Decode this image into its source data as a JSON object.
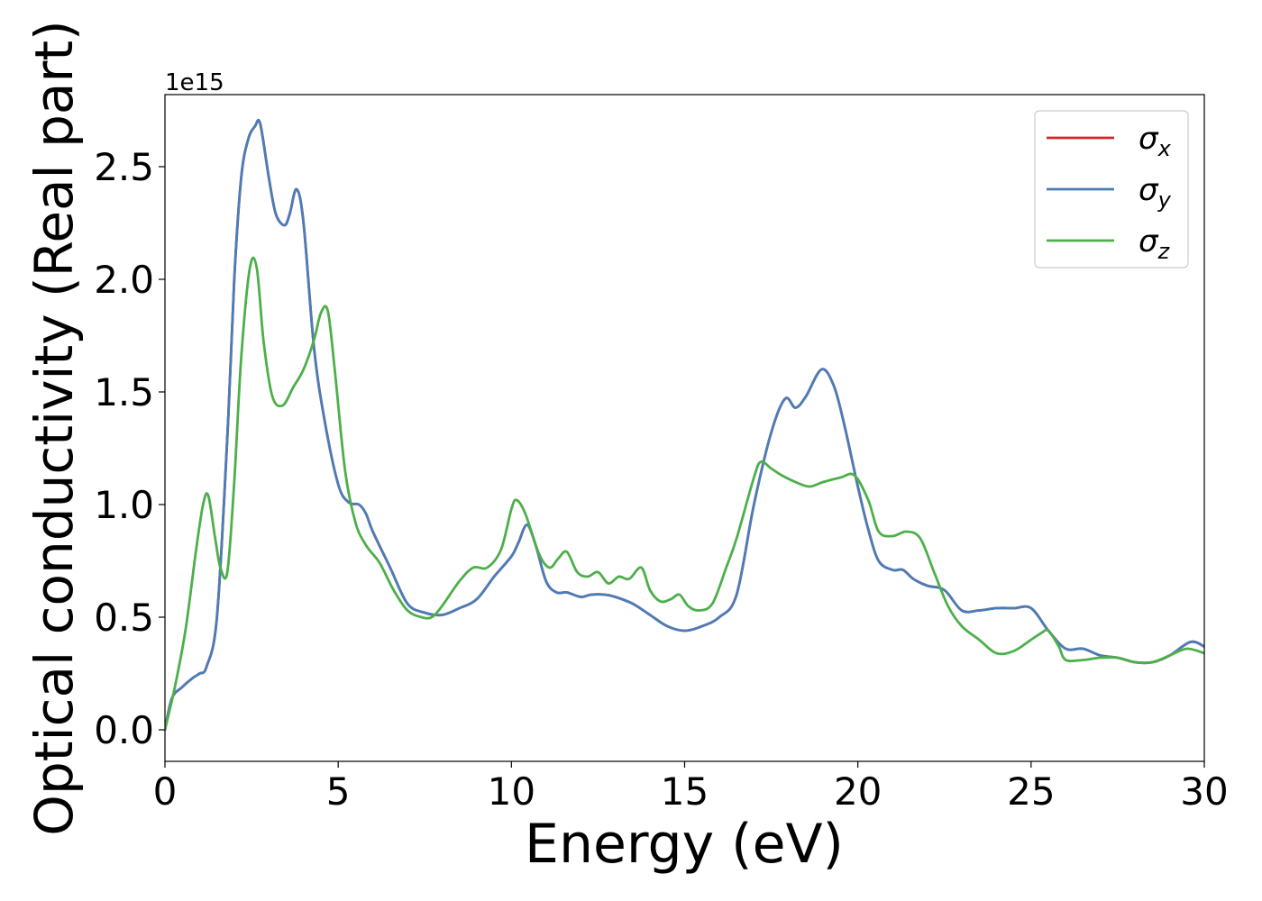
{
  "chart_data": {
    "type": "line",
    "title": "",
    "xlabel": "Energy (eV)",
    "ylabel": "Optical conductivity (Real part)",
    "y_offset_text": "1e15",
    "xlim": [
      0,
      30
    ],
    "ylim": [
      -0.14,
      2.82
    ],
    "x_ticks": [
      0,
      5,
      10,
      15,
      20,
      25,
      30
    ],
    "x_tick_labels": [
      "0",
      "5",
      "10",
      "15",
      "20",
      "25",
      "30"
    ],
    "y_ticks": [
      0.0,
      0.5,
      1.0,
      1.5,
      2.0,
      2.5
    ],
    "y_tick_labels": [
      "0.0",
      "0.5",
      "1.0",
      "1.5",
      "2.0",
      "2.5"
    ],
    "grid": false,
    "legend_position": "top-right",
    "series": [
      {
        "name": "σx",
        "legend_base": "σ",
        "legend_sub": "x",
        "color": "#d62728",
        "x": [
          0,
          0.2,
          0.5,
          0.8,
          1.0,
          1.2,
          1.5,
          1.8,
          2.0,
          2.2,
          2.4,
          2.6,
          2.75,
          3.0,
          3.2,
          3.45,
          3.6,
          3.8,
          4.0,
          4.3,
          4.6,
          5.0,
          5.3,
          5.6,
          5.8,
          6.0,
          6.5,
          7.0,
          7.5,
          8.0,
          8.5,
          9.0,
          9.5,
          10.0,
          10.2,
          10.45,
          10.7,
          11.0,
          11.3,
          11.6,
          12.0,
          12.3,
          12.7,
          13.0,
          13.5,
          14.0,
          14.5,
          15.0,
          15.5,
          16.0,
          16.5,
          17.0,
          17.5,
          17.9,
          18.2,
          18.5,
          18.95,
          19.3,
          19.6,
          20.0,
          20.3,
          20.6,
          21.0,
          21.3,
          21.6,
          22.0,
          22.5,
          23.0,
          23.5,
          24.0,
          24.5,
          25.0,
          25.5,
          26.0,
          26.5,
          27.0,
          27.5,
          28.0,
          28.5,
          29.0,
          29.6,
          30.0
        ],
        "values": [
          0,
          0.14,
          0.19,
          0.23,
          0.25,
          0.28,
          0.5,
          1.3,
          2.0,
          2.45,
          2.62,
          2.68,
          2.69,
          2.45,
          2.29,
          2.24,
          2.29,
          2.4,
          2.25,
          1.7,
          1.38,
          1.09,
          1.01,
          1.0,
          0.96,
          0.88,
          0.72,
          0.56,
          0.52,
          0.51,
          0.54,
          0.58,
          0.68,
          0.77,
          0.83,
          0.91,
          0.82,
          0.66,
          0.61,
          0.61,
          0.59,
          0.6,
          0.6,
          0.59,
          0.56,
          0.51,
          0.46,
          0.44,
          0.46,
          0.5,
          0.6,
          1.0,
          1.32,
          1.47,
          1.43,
          1.48,
          1.6,
          1.53,
          1.36,
          1.08,
          0.89,
          0.75,
          0.71,
          0.71,
          0.67,
          0.64,
          0.62,
          0.53,
          0.53,
          0.54,
          0.54,
          0.54,
          0.44,
          0.36,
          0.36,
          0.33,
          0.32,
          0.3,
          0.3,
          0.33,
          0.39,
          0.37
        ]
      },
      {
        "name": "σy",
        "legend_base": "σ",
        "legend_sub": "y",
        "color": "#4a7db8",
        "x": [
          0,
          0.2,
          0.5,
          0.8,
          1.0,
          1.2,
          1.5,
          1.8,
          2.0,
          2.2,
          2.4,
          2.6,
          2.75,
          3.0,
          3.2,
          3.45,
          3.6,
          3.8,
          4.0,
          4.3,
          4.6,
          5.0,
          5.3,
          5.6,
          5.8,
          6.0,
          6.5,
          7.0,
          7.5,
          8.0,
          8.5,
          9.0,
          9.5,
          10.0,
          10.2,
          10.45,
          10.7,
          11.0,
          11.3,
          11.6,
          12.0,
          12.3,
          12.7,
          13.0,
          13.5,
          14.0,
          14.5,
          15.0,
          15.5,
          16.0,
          16.5,
          17.0,
          17.5,
          17.9,
          18.2,
          18.5,
          18.95,
          19.3,
          19.6,
          20.0,
          20.3,
          20.6,
          21.0,
          21.3,
          21.6,
          22.0,
          22.5,
          23.0,
          23.5,
          24.0,
          24.5,
          25.0,
          25.5,
          26.0,
          26.5,
          27.0,
          27.5,
          28.0,
          28.5,
          29.0,
          29.6,
          30.0
        ],
        "values": [
          0,
          0.14,
          0.19,
          0.23,
          0.25,
          0.28,
          0.5,
          1.3,
          2.0,
          2.45,
          2.62,
          2.68,
          2.69,
          2.45,
          2.29,
          2.24,
          2.29,
          2.4,
          2.25,
          1.7,
          1.38,
          1.09,
          1.01,
          1.0,
          0.96,
          0.88,
          0.72,
          0.56,
          0.52,
          0.51,
          0.54,
          0.58,
          0.68,
          0.77,
          0.83,
          0.91,
          0.82,
          0.66,
          0.61,
          0.61,
          0.59,
          0.6,
          0.6,
          0.59,
          0.56,
          0.51,
          0.46,
          0.44,
          0.46,
          0.5,
          0.6,
          1.0,
          1.32,
          1.47,
          1.43,
          1.48,
          1.6,
          1.53,
          1.36,
          1.08,
          0.89,
          0.75,
          0.71,
          0.71,
          0.67,
          0.64,
          0.62,
          0.53,
          0.53,
          0.54,
          0.54,
          0.54,
          0.44,
          0.36,
          0.36,
          0.33,
          0.32,
          0.3,
          0.3,
          0.33,
          0.39,
          0.37
        ]
      },
      {
        "name": "σz",
        "legend_base": "σ",
        "legend_sub": "z",
        "color": "#4daf4a",
        "x": [
          0,
          0.3,
          0.6,
          0.9,
          1.1,
          1.25,
          1.45,
          1.6,
          1.8,
          2.0,
          2.2,
          2.45,
          2.65,
          2.85,
          3.1,
          3.4,
          3.7,
          4.0,
          4.3,
          4.5,
          4.7,
          4.9,
          5.2,
          5.5,
          5.8,
          6.2,
          6.6,
          7.0,
          7.4,
          7.7,
          8.0,
          8.5,
          8.9,
          9.3,
          9.7,
          10.0,
          10.15,
          10.4,
          10.8,
          11.1,
          11.35,
          11.6,
          11.9,
          12.2,
          12.5,
          12.8,
          13.1,
          13.4,
          13.75,
          14.0,
          14.3,
          14.6,
          14.85,
          15.1,
          15.4,
          15.8,
          16.2,
          16.5,
          17.0,
          17.2,
          17.5,
          17.8,
          18.2,
          18.6,
          19.0,
          19.5,
          19.9,
          20.3,
          20.6,
          21.0,
          21.4,
          21.8,
          22.2,
          22.6,
          23.0,
          23.5,
          24.0,
          24.5,
          25.0,
          25.3,
          25.5,
          25.8,
          26.0,
          26.5,
          27.0,
          27.5,
          28.0,
          28.5,
          29.0,
          29.5,
          30.0
        ],
        "values": [
          0,
          0.2,
          0.45,
          0.8,
          1.0,
          1.04,
          0.85,
          0.72,
          0.7,
          1.1,
          1.65,
          2.05,
          2.05,
          1.72,
          1.48,
          1.44,
          1.52,
          1.6,
          1.73,
          1.85,
          1.86,
          1.6,
          1.15,
          0.92,
          0.82,
          0.74,
          0.62,
          0.53,
          0.5,
          0.5,
          0.55,
          0.66,
          0.72,
          0.72,
          0.8,
          0.98,
          1.02,
          0.96,
          0.78,
          0.72,
          0.76,
          0.79,
          0.7,
          0.68,
          0.7,
          0.65,
          0.68,
          0.67,
          0.72,
          0.62,
          0.57,
          0.58,
          0.6,
          0.55,
          0.53,
          0.56,
          0.72,
          0.85,
          1.12,
          1.19,
          1.16,
          1.13,
          1.1,
          1.08,
          1.1,
          1.12,
          1.13,
          1.02,
          0.88,
          0.86,
          0.88,
          0.85,
          0.7,
          0.55,
          0.46,
          0.4,
          0.34,
          0.35,
          0.4,
          0.43,
          0.44,
          0.37,
          0.31,
          0.31,
          0.32,
          0.32,
          0.3,
          0.3,
          0.33,
          0.36,
          0.34
        ]
      }
    ]
  }
}
